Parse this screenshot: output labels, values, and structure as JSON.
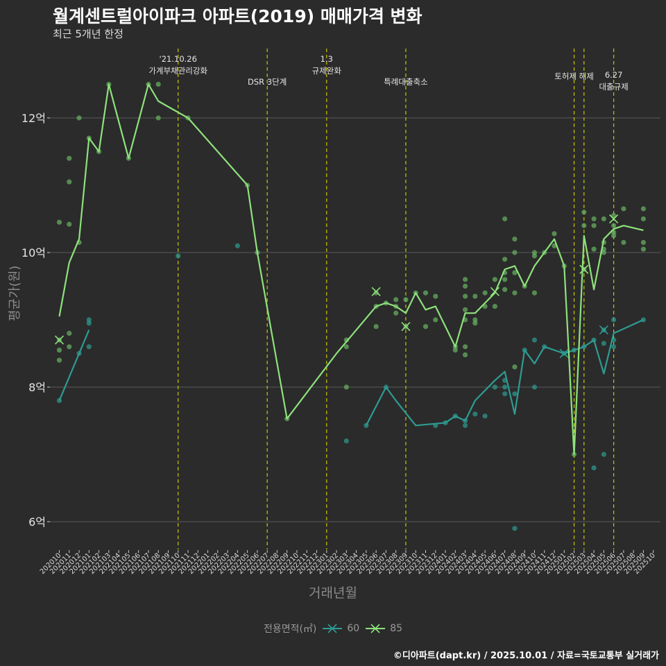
{
  "header": {
    "title": "월계센트럴아이파크 아파트(2019) 매매가격 변화",
    "subtitle": "최근 5개년 한정"
  },
  "footer": {
    "caption": "©디아파트(dapt.kr) / 2025.10.01 / 자료=국토교통부 실거래가"
  },
  "colors": {
    "background": "#2b2b2b",
    "series60": "#2e9c93",
    "series85": "#8ee27c",
    "points": "#6ab564",
    "grid": "#595959",
    "event_line": "#c8c800",
    "event_text": "#e6e6e6"
  },
  "chart_data": {
    "type": "line",
    "title": "월계센트럴아이파크 아파트(2019) 매매가격 변화",
    "subtitle": "최근 5개년 한정",
    "xlabel": "거래년월",
    "ylabel": "평균가(원)",
    "ylim": [
      5.6,
      13.0
    ],
    "yticks": [
      6,
      8,
      10,
      12
    ],
    "ytick_labels": [
      "6억",
      "8억",
      "10억",
      "12억"
    ],
    "grid": true,
    "legend_title": "전용면적(㎡)",
    "legend_position": "bottom",
    "x": [
      "202010",
      "202011",
      "202012",
      "202101",
      "202102",
      "202103",
      "202104",
      "202105",
      "202106",
      "202107",
      "202108",
      "202109",
      "202110",
      "202111",
      "202112",
      "202201",
      "202202",
      "202203",
      "202204",
      "202205",
      "202206",
      "202207",
      "202208",
      "202209",
      "202210",
      "202211",
      "202212",
      "202301",
      "202302",
      "202303",
      "202304",
      "202305",
      "202306",
      "202307",
      "202308",
      "202309",
      "202310",
      "202311",
      "202312",
      "202401",
      "202402",
      "202403",
      "202404",
      "202405",
      "202406",
      "202407",
      "202408",
      "202409",
      "202410",
      "202411",
      "202412",
      "202501",
      "202502",
      "202503",
      "202504",
      "202505",
      "202506",
      "202507",
      "202508",
      "202509",
      "202510"
    ],
    "events": [
      {
        "x": 12.0,
        "label": "'21.10.26\n가계부채관리강화",
        "level": 1
      },
      {
        "x": 21.0,
        "label": "DSR 3단계",
        "level": 2
      },
      {
        "x": 27.0,
        "label": "1.3\n규제완화",
        "level": 1
      },
      {
        "x": 35.0,
        "label": "특례대출축소",
        "level": 2
      },
      {
        "x": 52.0,
        "label": "토허제 해제",
        "level": 0
      },
      {
        "x": 53.0,
        "label": "",
        "level": 0
      },
      {
        "x": 56.0,
        "label": "6.27\n대출규제",
        "level": 3
      }
    ],
    "series": [
      {
        "name": "60",
        "values": [
          7.8,
          null,
          8.5,
          8.85,
          null,
          null,
          null,
          null,
          null,
          null,
          null,
          null,
          null,
          null,
          null,
          null,
          null,
          null,
          null,
          null,
          null,
          null,
          null,
          null,
          null,
          null,
          null,
          null,
          null,
          null,
          null,
          7.43,
          null,
          8.0,
          7.8,
          null,
          7.43,
          null,
          null,
          7.47,
          7.57,
          7.5,
          7.8,
          null,
          8.1,
          8.23,
          7.6,
          8.55,
          8.35,
          8.6,
          null,
          8.5,
          8.55,
          8.6,
          8.7,
          8.2,
          8.8,
          null,
          null,
          9.0,
          null
        ],
        "markers": [
          {
            "x": 51,
            "y": 8.5
          },
          {
            "x": 55,
            "y": 8.85
          }
        ],
        "points": [
          [
            0,
            7.8
          ],
          [
            2,
            8.5
          ],
          [
            3,
            8.95
          ],
          [
            3,
            9.0
          ],
          [
            3,
            8.6
          ],
          [
            12,
            9.95
          ],
          [
            18,
            10.1
          ],
          [
            29,
            7.2
          ],
          [
            31,
            7.43
          ],
          [
            33,
            8.0
          ],
          [
            38,
            7.43
          ],
          [
            39,
            7.47
          ],
          [
            40,
            7.57
          ],
          [
            41,
            7.5
          ],
          [
            41,
            7.43
          ],
          [
            42,
            7.6
          ],
          [
            43,
            7.57
          ],
          [
            44,
            8.0
          ],
          [
            45,
            8.1
          ],
          [
            45,
            8.0
          ],
          [
            45,
            7.9
          ],
          [
            46,
            7.9
          ],
          [
            46,
            5.9
          ],
          [
            47,
            8.55
          ],
          [
            48,
            8.0
          ],
          [
            48,
            8.7
          ],
          [
            49,
            8.6
          ],
          [
            51,
            8.5
          ],
          [
            52,
            8.55
          ],
          [
            53,
            8.6
          ],
          [
            54,
            6.8
          ],
          [
            54,
            8.7
          ],
          [
            55,
            7.0
          ],
          [
            55,
            8.85
          ],
          [
            55,
            8.65
          ],
          [
            56,
            8.7
          ],
          [
            56,
            8.6
          ],
          [
            56,
            9.0
          ],
          [
            59,
            9.0
          ]
        ]
      },
      {
        "name": "85",
        "values": [
          9.05,
          9.85,
          10.2,
          11.7,
          11.5,
          12.5,
          null,
          11.4,
          null,
          12.5,
          12.25,
          null,
          null,
          12.0,
          null,
          null,
          null,
          null,
          null,
          11.0,
          10.0,
          null,
          null,
          7.53,
          null,
          null,
          null,
          null,
          8.5,
          null,
          null,
          null,
          9.2,
          9.25,
          9.2,
          9.1,
          9.4,
          9.15,
          9.2,
          null,
          8.6,
          9.1,
          9.1,
          9.25,
          9.4,
          9.75,
          9.8,
          9.5,
          9.8,
          10.0,
          10.2,
          9.8,
          7.0,
          10.25,
          9.45,
          10.2,
          10.35,
          10.4,
          null,
          10.33,
          null
        ],
        "markers": [
          {
            "x": 0,
            "y": 8.7
          },
          {
            "x": 32,
            "y": 9.42
          },
          {
            "x": 35,
            "y": 8.9
          },
          {
            "x": 44,
            "y": 9.42
          },
          {
            "x": 53,
            "y": 9.75
          },
          {
            "x": 56,
            "y": 10.5
          }
        ],
        "points": [
          [
            0,
            8.7
          ],
          [
            0,
            8.55
          ],
          [
            0,
            8.4
          ],
          [
            0,
            10.45
          ],
          [
            1,
            11.4
          ],
          [
            1,
            11.05
          ],
          [
            1,
            10.42
          ],
          [
            1,
            8.8
          ],
          [
            1,
            8.6
          ],
          [
            2,
            12.0
          ],
          [
            2,
            10.15
          ],
          [
            3,
            11.7
          ],
          [
            4,
            11.5
          ],
          [
            5,
            12.5
          ],
          [
            7,
            11.4
          ],
          [
            9,
            12.5
          ],
          [
            10,
            12.5
          ],
          [
            10,
            12.0
          ],
          [
            13,
            12.0
          ],
          [
            19,
            11.0
          ],
          [
            20,
            10.0
          ],
          [
            23,
            7.53
          ],
          [
            29,
            8.7
          ],
          [
            29,
            8.6
          ],
          [
            29,
            8.0
          ],
          [
            32,
            9.4
          ],
          [
            32,
            9.2
          ],
          [
            32,
            8.9
          ],
          [
            33,
            9.25
          ],
          [
            34,
            9.3
          ],
          [
            34,
            9.2
          ],
          [
            34,
            9.1
          ],
          [
            35,
            9.3
          ],
          [
            35,
            8.9
          ],
          [
            36,
            9.4
          ],
          [
            37,
            9.4
          ],
          [
            37,
            8.9
          ],
          [
            38,
            9.35
          ],
          [
            38,
            9.0
          ],
          [
            40,
            8.6
          ],
          [
            40,
            8.55
          ],
          [
            41,
            9.6
          ],
          [
            41,
            9.5
          ],
          [
            41,
            9.35
          ],
          [
            41,
            9.15
          ],
          [
            41,
            9.0
          ],
          [
            41,
            8.6
          ],
          [
            41,
            8.48
          ],
          [
            42,
            9.35
          ],
          [
            42,
            9.0
          ],
          [
            42,
            8.95
          ],
          [
            43,
            9.4
          ],
          [
            43,
            9.2
          ],
          [
            44,
            9.6
          ],
          [
            44,
            9.2
          ],
          [
            45,
            10.5
          ],
          [
            45,
            9.9
          ],
          [
            45,
            9.7
          ],
          [
            45,
            9.6
          ],
          [
            45,
            9.45
          ],
          [
            46,
            10.2
          ],
          [
            46,
            10.0
          ],
          [
            46,
            9.7
          ],
          [
            46,
            9.4
          ],
          [
            46,
            8.3
          ],
          [
            47,
            9.5
          ],
          [
            48,
            10.0
          ],
          [
            48,
            9.95
          ],
          [
            48,
            9.4
          ],
          [
            49,
            10.0
          ],
          [
            50,
            10.28
          ],
          [
            50,
            10.1
          ],
          [
            51,
            9.8
          ],
          [
            52,
            7.0
          ],
          [
            53,
            10.6
          ],
          [
            53,
            10.4
          ],
          [
            53,
            9.75
          ],
          [
            54,
            10.5
          ],
          [
            54,
            10.4
          ],
          [
            54,
            10.05
          ],
          [
            55,
            10.5
          ],
          [
            55,
            10.15
          ],
          [
            55,
            10.05
          ],
          [
            55,
            10.0
          ],
          [
            56,
            10.55
          ],
          [
            56,
            10.4
          ],
          [
            56,
            10.3
          ],
          [
            56,
            10.25
          ],
          [
            57,
            10.65
          ],
          [
            57,
            10.15
          ],
          [
            59,
            10.65
          ],
          [
            59,
            10.5
          ],
          [
            59,
            10.15
          ],
          [
            59,
            10.05
          ]
        ]
      }
    ]
  }
}
